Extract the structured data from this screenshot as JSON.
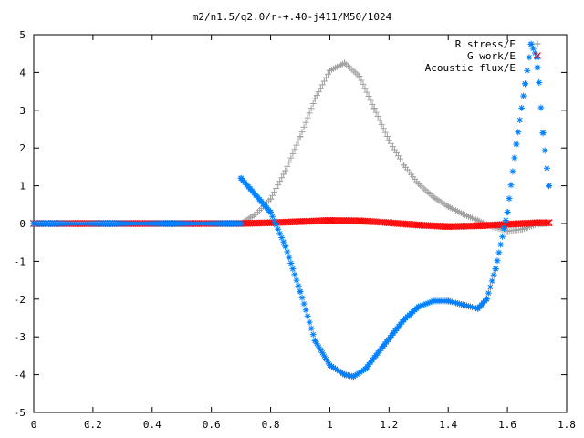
{
  "chart_data": {
    "type": "scatter",
    "title": "m2/n1.5/q2.0/r-+.40-j411/M50/1024",
    "xlabel": "",
    "ylabel": "",
    "xlim": [
      0,
      1.8
    ],
    "ylim": [
      -5,
      5
    ],
    "x_ticks": [
      0,
      0.2,
      0.4,
      0.6,
      0.8,
      1,
      1.2,
      1.4,
      1.6,
      1.8
    ],
    "x_tick_labels": [
      "0",
      "0.2",
      "0.4",
      "0.6",
      "0.8",
      "1",
      "1.2",
      "1.4",
      "1.6",
      "1.8"
    ],
    "y_ticks": [
      -5,
      -4,
      -3,
      -2,
      -1,
      0,
      1,
      2,
      3,
      4,
      5
    ],
    "y_tick_labels": [
      "-5",
      "-4",
      "-3",
      "-2",
      "-1",
      "0",
      "1",
      "2",
      "3",
      "4",
      "5"
    ],
    "grid": false,
    "legend_position": "top-right",
    "series": [
      {
        "name": "R stress/E",
        "marker": "+",
        "color": "#a0a0a0",
        "x": [
          0,
          0.7,
          0.75,
          0.8,
          0.85,
          0.9,
          0.95,
          1.0,
          1.05,
          1.1,
          1.15,
          1.2,
          1.25,
          1.3,
          1.35,
          1.4,
          1.45,
          1.5,
          1.55,
          1.6,
          1.65,
          1.7,
          1.74
        ],
        "y": [
          0,
          0,
          0.25,
          0.65,
          1.4,
          2.3,
          3.3,
          4.05,
          4.25,
          3.9,
          3.05,
          2.2,
          1.55,
          1.05,
          0.7,
          0.45,
          0.25,
          0.08,
          -0.08,
          -0.2,
          -0.15,
          -0.02,
          0
        ]
      },
      {
        "name": "G work/E",
        "marker": "x",
        "color": "#ff0000",
        "x": [
          0,
          0.7,
          0.8,
          0.9,
          1.0,
          1.1,
          1.2,
          1.3,
          1.4,
          1.5,
          1.6,
          1.7,
          1.74
        ],
        "y": [
          0,
          0,
          0.02,
          0.05,
          0.08,
          0.07,
          0.02,
          -0.04,
          -0.08,
          -0.06,
          -0.02,
          0.02,
          0.02
        ]
      },
      {
        "name": "Acoustic flux/E",
        "marker": "*",
        "color": "#0080ff",
        "x": [
          0,
          0.7,
          0.7,
          0.75,
          0.8,
          0.85,
          0.9,
          0.95,
          1.0,
          1.05,
          1.08,
          1.12,
          1.18,
          1.25,
          1.3,
          1.35,
          1.4,
          1.45,
          1.5,
          1.53,
          1.56,
          1.6,
          1.63,
          1.66,
          1.68,
          1.7,
          1.72,
          1.74
        ],
        "y": [
          0,
          0,
          1.2,
          0.75,
          0.3,
          -0.6,
          -1.8,
          -3.1,
          -3.75,
          -4.0,
          -4.05,
          -3.85,
          -3.25,
          -2.55,
          -2.2,
          -2.05,
          -2.05,
          -2.15,
          -2.25,
          -2.0,
          -1.2,
          0.3,
          2.1,
          3.7,
          4.75,
          4.4,
          2.4,
          1.0
        ]
      }
    ]
  }
}
